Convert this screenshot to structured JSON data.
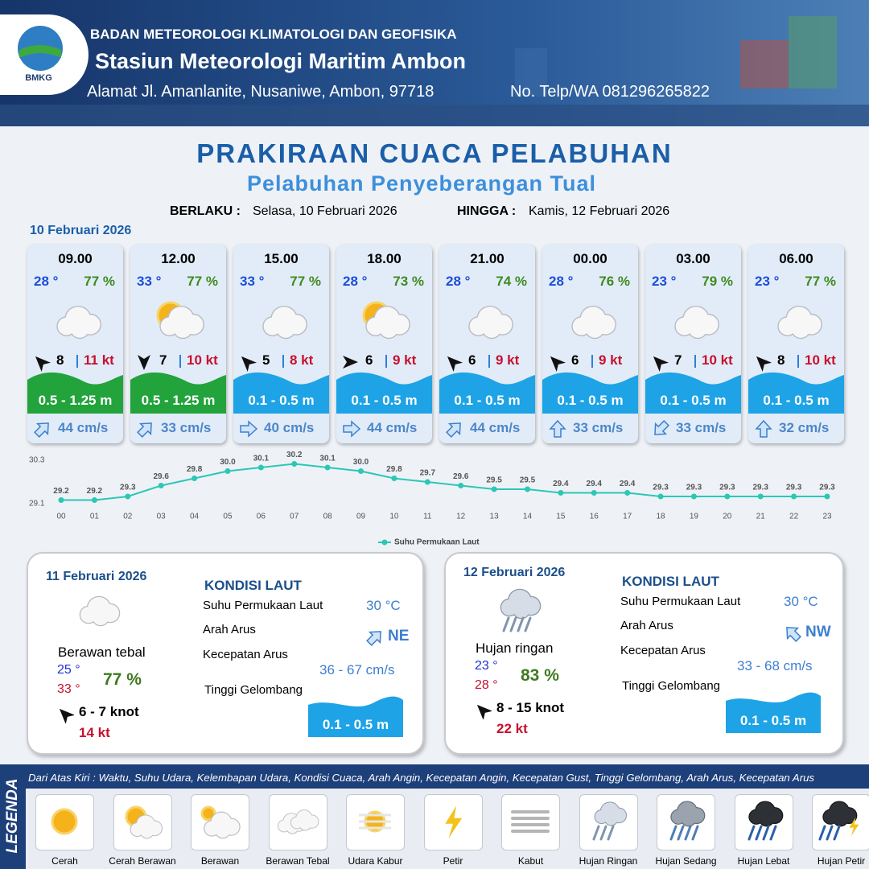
{
  "header": {
    "logo_text": "BMKG",
    "agency": "BADAN METEOROLOGI KLIMATOLOGI DAN GEOFISIKA",
    "station": "Stasiun Meteorologi Maritim Ambon",
    "address": "Alamat Jl. Amanlanite, Nusaniwe, Ambon, 97718",
    "phone": "No. Telp/WA  081296265822"
  },
  "title": "PRAKIRAAN CUACA PELABUHAN",
  "subtitle": "Pelabuhan Penyeberangan Tual",
  "validity": {
    "from_label": "BERLAKU :",
    "from": "Selasa, 10 Februari 2026",
    "to_label": "HINGGA :",
    "to": "Kamis, 12 Februari 2026"
  },
  "day1_date": "10 Februari 2026",
  "forecasts": [
    {
      "time": "09.00",
      "temp": "28 °",
      "humidity": "77 %",
      "sun": false,
      "wind_dir": -45,
      "wind": "8",
      "gust": "11 kt",
      "wave": "0.5 - 1.25 m",
      "wave_color": "#23a33c",
      "current_dir": 45,
      "current": "44 cm/s"
    },
    {
      "time": "12.00",
      "temp": "33 °",
      "humidity": "77 %",
      "sun": true,
      "wind_dir": 180,
      "wind": "7",
      "gust": "10 kt",
      "wave": "0.5 - 1.25 m",
      "wave_color": "#23a33c",
      "current_dir": 45,
      "current": "33 cm/s"
    },
    {
      "time": "15.00",
      "temp": "33 °",
      "humidity": "77 %",
      "sun": false,
      "wind_dir": -45,
      "wind": "5",
      "gust": "8 kt",
      "wave": "0.1 - 0.5 m",
      "wave_color": "#1ea3e6",
      "current_dir": 90,
      "current": "40 cm/s"
    },
    {
      "time": "18.00",
      "temp": "28 °",
      "humidity": "73 %",
      "sun": true,
      "wind_dir": 90,
      "wind": "6",
      "gust": "9 kt",
      "wave": "0.1 - 0.5 m",
      "wave_color": "#1ea3e6",
      "current_dir": 90,
      "current": "44 cm/s"
    },
    {
      "time": "21.00",
      "temp": "28 °",
      "humidity": "74 %",
      "sun": false,
      "wind_dir": -45,
      "wind": "6",
      "gust": "9 kt",
      "wave": "0.1 - 0.5 m",
      "wave_color": "#1ea3e6",
      "current_dir": 45,
      "current": "44 cm/s"
    },
    {
      "time": "00.00",
      "temp": "28 °",
      "humidity": "76 %",
      "sun": false,
      "wind_dir": -45,
      "wind": "6",
      "gust": "9 kt",
      "wave": "0.1 - 0.5 m",
      "wave_color": "#1ea3e6",
      "current_dir": 0,
      "current": "33 cm/s"
    },
    {
      "time": "03.00",
      "temp": "23 °",
      "humidity": "79 %",
      "sun": false,
      "wind_dir": -45,
      "wind": "7",
      "gust": "10 kt",
      "wave": "0.1 - 0.5 m",
      "wave_color": "#1ea3e6",
      "current_dir": 225,
      "current": "33 cm/s"
    },
    {
      "time": "06.00",
      "temp": "23 °",
      "humidity": "77 %",
      "sun": false,
      "wind_dir": -45,
      "wind": "8",
      "gust": "10 kt",
      "wave": "0.1 - 0.5 m",
      "wave_color": "#1ea3e6",
      "current_dir": 0,
      "current": "32 cm/s"
    }
  ],
  "chart_data": {
    "type": "line",
    "categories": [
      "00",
      "01",
      "02",
      "03",
      "04",
      "05",
      "06",
      "07",
      "08",
      "09",
      "10",
      "11",
      "12",
      "13",
      "14",
      "15",
      "16",
      "17",
      "18",
      "19",
      "20",
      "21",
      "22",
      "23"
    ],
    "series": [
      {
        "name": "Suhu Permukaan Laut",
        "color": "#2cc7b5",
        "values": [
          29.2,
          29.2,
          29.3,
          29.6,
          29.8,
          30.0,
          30.1,
          30.2,
          30.1,
          30.0,
          29.8,
          29.7,
          29.6,
          29.5,
          29.5,
          29.4,
          29.4,
          29.4,
          29.3,
          29.3,
          29.3,
          29.3,
          29.3,
          29.3
        ],
        "value_labels": [
          "29.2",
          "29.2",
          "29.3",
          "29.6",
          "29.8",
          "30.0",
          "30.1",
          "30.2",
          "30.1",
          "30.0",
          "29.8",
          "29.7",
          "29.6",
          "29.5",
          "29.5",
          "29.4",
          "29.4",
          "29.4",
          "29.3",
          "29.3",
          "29.3",
          "29.3",
          "29.3",
          "29.3"
        ]
      }
    ],
    "ylim": [
      29.1,
      30.3
    ],
    "yticks": [
      29.1,
      30.3
    ],
    "grid": false,
    "legend": "bottom"
  },
  "days": [
    {
      "date": "11 Februari 2026",
      "rain": false,
      "condition": "Berawan tebal",
      "temp_min": "25 °",
      "temp_max": "33 °",
      "humidity": "77 %",
      "wind": "6  - 7 knot",
      "gust": "14 kt",
      "sea_title": "KONDISI LAUT",
      "sst_label": "Suhu Permukaan Laut",
      "sst": "30 °C",
      "dir_label": "Arah Arus",
      "current_dir": 45,
      "dir": "NE",
      "speed_label": "Kecepatan Arus",
      "speed": "36 - 67 cm/s",
      "wave_label": "Tinggi Gelombang",
      "wave": "0.1 - 0.5 m"
    },
    {
      "date": "12 Februari 2026",
      "rain": true,
      "condition": "Hujan ringan",
      "temp_min": "23 °",
      "temp_max": "28 °",
      "humidity": "83 %",
      "wind": "8  - 15 knot",
      "gust": "22 kt",
      "sea_title": "KONDISI LAUT",
      "sst_label": "Suhu Permukaan Laut",
      "sst": "30 °C",
      "dir_label": "Arah Arus",
      "current_dir": -45,
      "dir": "NW",
      "speed_label": "Kecepatan Arus",
      "speed": "33 - 68 cm/s",
      "wave_label": "Tinggi Gelombang",
      "wave": "0.1 - 0.5 m"
    }
  ],
  "legend": {
    "title": "LEGENDA",
    "description": "Dari Atas Kiri : Waktu, Suhu Udara, Kelembapan Udara, Kondisi Cuaca, Arah Angin, Kecepatan Angin, Kecepatan Gust, Tinggi Gelombang, Arah Arus, Kecepatan Arus",
    "items": [
      "Cerah",
      "Cerah Berawan",
      "Berawan",
      "Berawan Tebal",
      "Udara Kabur",
      "Petir",
      "Kabut",
      "Hujan Ringan",
      "Hujan Sedang",
      "Hujan Lebat",
      "Hujan Petir"
    ]
  }
}
